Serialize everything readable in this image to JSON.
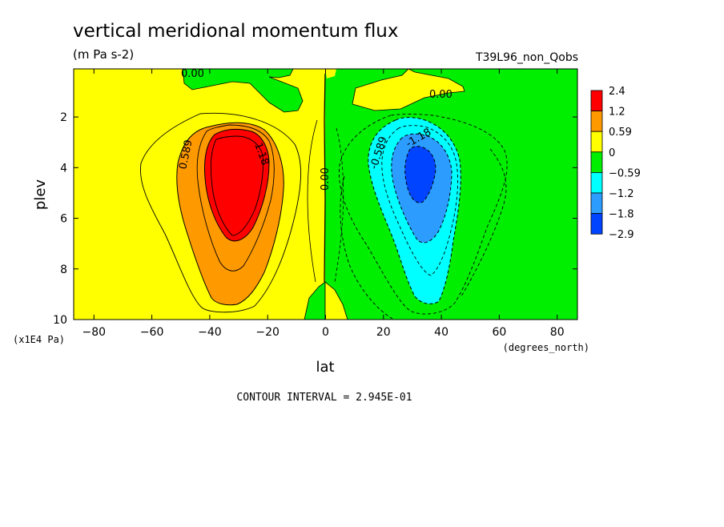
{
  "chart_data": {
    "type": "contour",
    "title": "vertical meridional momentum flux",
    "subtitle": "(m Pa s-2)",
    "run_label": "T39L96_non_Qobs",
    "xlabel": "lat",
    "ylabel": "plev",
    "x_units": "(degrees_north)",
    "y_units": "(x1E4 Pa)",
    "xlim": [
      -87,
      87
    ],
    "ylim": [
      10,
      0.1
    ],
    "x_ticks": [
      -80,
      -60,
      -40,
      -20,
      0,
      20,
      40,
      60,
      80
    ],
    "x_tick_labels": [
      "−80",
      "−60",
      "−40",
      "−20",
      "0",
      "20",
      "40",
      "60",
      "80"
    ],
    "y_ticks": [
      2,
      4,
      6,
      8,
      10
    ],
    "y_tick_labels": [
      "2",
      "4",
      "6",
      "8",
      "10"
    ],
    "contour_interval_text": "CONTOUR INTERVAL = 2.945E-01",
    "contour_labels": [
      "0.00",
      "0.00",
      "0.00",
      "0.589",
      "1.18",
      "-0.589",
      "-1.18"
    ],
    "colorbar": {
      "labels": [
        "2.4",
        "1.2",
        "0.59",
        "0",
        "−0.59",
        "−1.2",
        "−1.8",
        "−2.9"
      ],
      "colors": [
        "#ff0000",
        "#ff9900",
        "#ffff00",
        "#00ee00",
        "#00ffff",
        "#2c9cff",
        "#0044ff"
      ]
    },
    "features": [
      {
        "name": "positive maximum",
        "lat": -32,
        "plev": 4.2,
        "value_range": [
          1.2,
          2.4
        ]
      },
      {
        "name": "negative minimum",
        "lat": 32,
        "plev": 4.0,
        "value_range": [
          -2.9,
          -1.8
        ]
      }
    ]
  }
}
